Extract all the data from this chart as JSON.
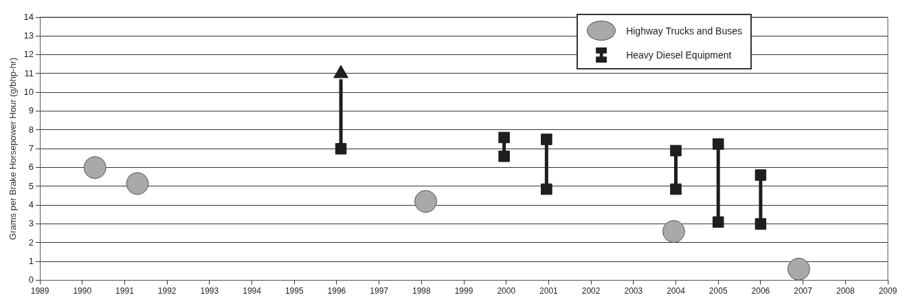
{
  "chart_data": {
    "type": "scatter",
    "ylabel": "Grams per Brake Horsepower Hour (g/bhp-hr)",
    "xlim": [
      1989,
      2009
    ],
    "xticks": [
      1989,
      1990,
      1991,
      1992,
      1993,
      1994,
      1995,
      1996,
      1997,
      1998,
      1999,
      2000,
      2001,
      2002,
      2003,
      2004,
      2005,
      2006,
      2007,
      2008,
      2009
    ],
    "ylim": [
      0,
      14
    ],
    "yticks": [
      0,
      1,
      2,
      3,
      4,
      5,
      6,
      7,
      8,
      9,
      10,
      11,
      12,
      13,
      14
    ],
    "grid": "y",
    "legend": "top right",
    "series": [
      {
        "name": "Highway Trucks and Buses",
        "type": "scatter",
        "marker": "circle",
        "color": "#a9a9a9",
        "x": [
          1990.3,
          1991.3,
          1998.1,
          2003.95,
          2006.9
        ],
        "values": [
          6.0,
          5.15,
          4.2,
          2.6,
          0.6
        ]
      },
      {
        "name": "Heavy Diesel Equipment",
        "type": "scatter",
        "marker": "square",
        "color": "#1e1e1e",
        "x": [
          1996.1,
          1999.95,
          1999.95,
          2000.95,
          2000.95,
          2004,
          2004,
          2005,
          2005,
          2006,
          2006
        ],
        "values": [
          7,
          6.6,
          7.6,
          4.85,
          7.5,
          4.85,
          6.9,
          3.1,
          7.25,
          3.0,
          5.6
        ]
      },
      {
        "type": "line",
        "marker": "none",
        "color": "#1e1e1e",
        "x": [
          1996.1,
          1996.1,
          null,
          1999.95,
          1999.95,
          null,
          2000.95,
          2000.95,
          null,
          2004,
          2004,
          null,
          2005,
          2005,
          null,
          2006,
          2006
        ],
        "values": [
          7,
          10.7,
          null,
          6.6,
          7.6,
          null,
          4.85,
          7.5,
          null,
          4.85,
          6.9,
          null,
          3.1,
          7.25,
          null,
          3.0,
          5.6
        ]
      },
      {
        "type": "scatter",
        "marker": "triangle",
        "color": "#1e1e1e",
        "x": [
          1996.1
        ],
        "values": [
          11
        ]
      }
    ]
  }
}
